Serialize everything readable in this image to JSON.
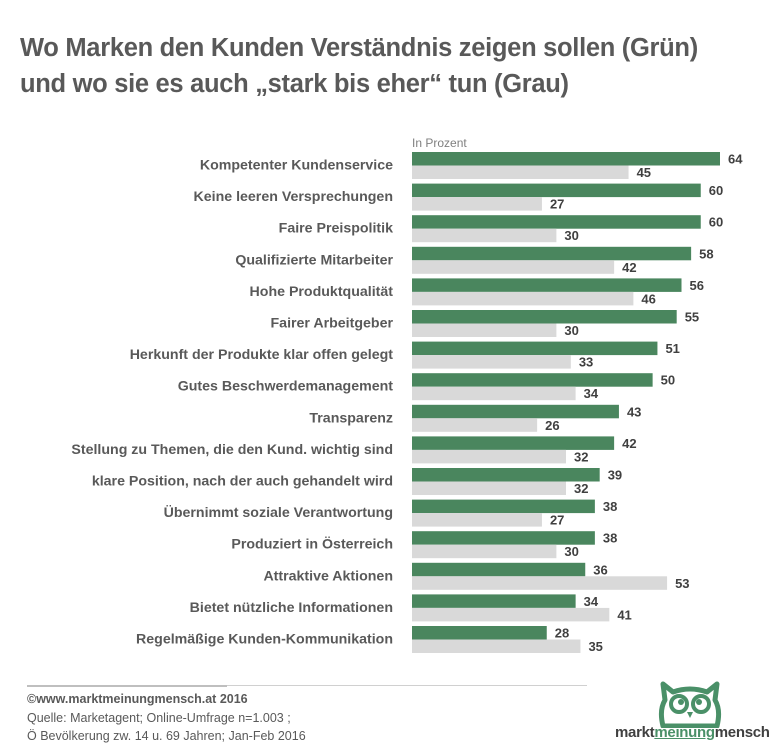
{
  "header": {
    "title_line1": "Wo Marken den Kunden Verständnis zeigen sollen (Grün)",
    "title_line2": "und wo sie es auch „stark bis eher“ tun (Grau)"
  },
  "unit_label": "In Prozent",
  "colors": {
    "green": "#4a865e",
    "grey": "#d9d9d9"
  },
  "chart_data": {
    "type": "bar",
    "orientation": "horizontal",
    "title": "Wo Marken den Kunden Verständnis zeigen sollen (Grün) und wo sie es auch „stark bis eher“ tun (Grau)",
    "xlabel": "In Prozent",
    "ylabel": "",
    "xlim": [
      0,
      70
    ],
    "grid": false,
    "legend": "none",
    "categories": [
      "Kompetenter Kundenservice",
      "Keine leeren Versprechungen",
      "Faire Preispolitik",
      "Qualifizierte Mitarbeiter",
      "Hohe Produktqualität",
      "Fairer Arbeitgeber",
      "Herkunft der Produkte klar offen gelegt",
      "Gutes Beschwerdemanagement",
      "Transparenz",
      "Stellung zu Themen, die den Kund. wichtig sind",
      "klare Position, nach der auch gehandelt wird",
      "Übernimmt soziale Verantwortung",
      "Produziert in Österreich",
      "Attraktive Aktionen",
      "Bietet nützliche Informationen",
      "Regelmäßige Kunden-Kommunikation"
    ],
    "series": [
      {
        "name": "Verständnis zeigen sollen (Grün)",
        "color": "#4a865e",
        "values": [
          64,
          60,
          60,
          58,
          56,
          55,
          51,
          50,
          43,
          42,
          39,
          38,
          38,
          36,
          34,
          28
        ]
      },
      {
        "name": "stark bis eher tun (Grau)",
        "color": "#d9d9d9",
        "values": [
          45,
          27,
          30,
          42,
          46,
          30,
          33,
          34,
          26,
          32,
          32,
          27,
          30,
          53,
          41,
          35
        ]
      }
    ]
  },
  "footer": {
    "copyright": "©www.marktmeinungmensch.at 2016",
    "source_line1": "Quelle: Marketagent; Online-Umfrage n=1.003 ;",
    "source_line2": "Ö Bevölkerung zw. 14 u. 69 Jahren; Jan-Feb 2016"
  },
  "logo": {
    "part1": "markt",
    "part2": "meinung",
    "part3": "mensch"
  }
}
